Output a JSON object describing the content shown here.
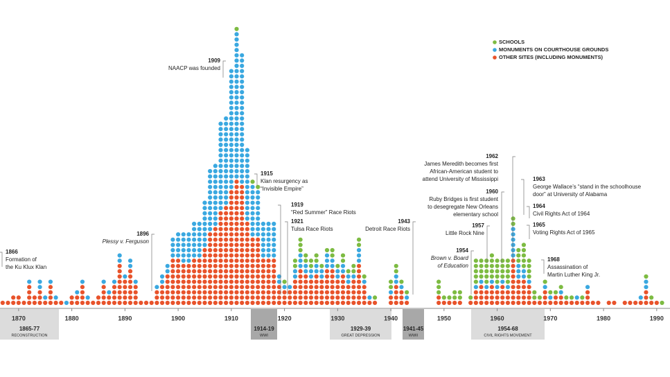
{
  "chart_data": {
    "type": "dot-stack",
    "xlim": [
      1866.5,
      1992.5
    ],
    "xticks": [
      1870,
      1880,
      1890,
      1900,
      1910,
      1920,
      1930,
      1940,
      1950,
      1960,
      1970,
      1980,
      1990
    ],
    "x": [
      1866,
      1867,
      1868,
      1869,
      1870,
      1871,
      1872,
      1873,
      1874,
      1875,
      1876,
      1877,
      1878,
      1879,
      1880,
      1881,
      1882,
      1883,
      1884,
      1885,
      1886,
      1887,
      1888,
      1889,
      1890,
      1891,
      1892,
      1893,
      1894,
      1895,
      1896,
      1897,
      1898,
      1899,
      1900,
      1901,
      1902,
      1903,
      1904,
      1905,
      1906,
      1907,
      1908,
      1909,
      1910,
      1911,
      1912,
      1913,
      1914,
      1915,
      1916,
      1917,
      1918,
      1919,
      1920,
      1921,
      1922,
      1923,
      1924,
      1925,
      1926,
      1927,
      1928,
      1929,
      1930,
      1931,
      1932,
      1933,
      1934,
      1935,
      1936,
      1937,
      1940,
      1941,
      1942,
      1943,
      1949,
      1950,
      1951,
      1952,
      1953,
      1955,
      1956,
      1957,
      1958,
      1959,
      1960,
      1961,
      1962,
      1963,
      1964,
      1965,
      1966,
      1967,
      1968,
      1969,
      1970,
      1971,
      1972,
      1973,
      1974,
      1975,
      1976,
      1977,
      1978,
      1979,
      1981,
      1982,
      1984,
      1985,
      1986,
      1987,
      1988,
      1989,
      1990,
      1991
    ],
    "series": [
      {
        "name": "SCHOOLS",
        "color": "#7dbb42",
        "values": [
          0,
          0,
          0,
          0,
          0,
          0,
          0,
          0,
          0,
          0,
          0,
          0,
          0,
          0,
          0,
          0,
          0,
          0,
          0,
          0,
          0,
          0,
          0,
          0,
          0,
          0,
          0,
          0,
          0,
          0,
          0,
          0,
          0,
          0,
          0,
          0,
          0,
          0,
          0,
          0,
          0,
          0,
          0,
          0,
          0,
          1,
          0,
          0,
          1,
          1,
          0,
          0,
          0,
          0,
          1,
          0,
          2,
          3,
          2,
          2,
          2,
          1,
          1,
          2,
          1,
          2,
          1,
          2,
          2,
          1,
          0,
          1,
          2,
          2,
          1,
          1,
          3,
          1,
          1,
          2,
          2,
          1,
          5,
          4,
          5,
          5,
          5,
          4,
          5,
          2,
          3,
          5,
          4,
          2,
          1,
          1,
          1,
          1,
          1,
          1,
          1,
          0,
          1,
          0,
          0,
          0,
          0,
          0,
          0,
          0,
          0,
          0,
          1,
          1,
          0,
          1
        ]
      },
      {
        "name": "MONUMENTS ON COURTHOUSE GROUNDS",
        "color": "#3aa8e0",
        "values": [
          1,
          0,
          0,
          0,
          0,
          0,
          1,
          0,
          2,
          1,
          1,
          1,
          0,
          1,
          0,
          1,
          1,
          1,
          0,
          0,
          1,
          1,
          1,
          2,
          1,
          2,
          1,
          0,
          0,
          0,
          1,
          2,
          2,
          4,
          5,
          6,
          6,
          7,
          7,
          9,
          12,
          12,
          17,
          17,
          23,
          28,
          25,
          14,
          10,
          9,
          7,
          7,
          7,
          2,
          1,
          1,
          2,
          3,
          2,
          2,
          2,
          2,
          3,
          2,
          2,
          2,
          2,
          1,
          3,
          1,
          1,
          0,
          1,
          2,
          1,
          1,
          0,
          0,
          0,
          0,
          0,
          0,
          1,
          1,
          1,
          1,
          1,
          1,
          1,
          6,
          3,
          2,
          1,
          0,
          0,
          1,
          1,
          0,
          1,
          0,
          0,
          1,
          0,
          1,
          0,
          0,
          0,
          0,
          0,
          0,
          0,
          1,
          2,
          0,
          0,
          0
        ]
      },
      {
        "name": "OTHER SITES (INCLUDING MONUMENTS)",
        "color": "#e8532b",
        "values": [
          3,
          1,
          1,
          2,
          2,
          1,
          4,
          2,
          3,
          1,
          4,
          1,
          1,
          0,
          2,
          2,
          4,
          1,
          1,
          2,
          4,
          2,
          4,
          8,
          5,
          7,
          4,
          1,
          1,
          1,
          3,
          4,
          6,
          9,
          9,
          8,
          8,
          9,
          9,
          11,
          14,
          15,
          18,
          19,
          22,
          24,
          23,
          16,
          13,
          13,
          9,
          9,
          9,
          4,
          3,
          3,
          5,
          7,
          6,
          5,
          6,
          5,
          7,
          7,
          5,
          6,
          4,
          5,
          8,
          4,
          1,
          1,
          2,
          4,
          3,
          1,
          2,
          1,
          1,
          1,
          1,
          1,
          3,
          4,
          3,
          4,
          3,
          4,
          3,
          9,
          5,
          5,
          4,
          1,
          1,
          3,
          1,
          2,
          2,
          1,
          1,
          1,
          1,
          3,
          1,
          1,
          1,
          1,
          1,
          1,
          1,
          1,
          3,
          1,
          1,
          0
        ]
      }
    ],
    "annotations": [
      {
        "year": "1866",
        "lines": [
          "Formation of",
          "the Ku Klux Klan"
        ]
      },
      {
        "year": "1896",
        "lines": [
          "Plessy v. Ferguson"
        ]
      },
      {
        "year": "1909",
        "lines": [
          "NAACP was founded"
        ]
      },
      {
        "year": "1915",
        "lines": [
          "Klan resurgency as",
          "“Invisible Empire”"
        ]
      },
      {
        "year": "1919",
        "lines": [
          "“Red Summer” Race Riots"
        ]
      },
      {
        "year": "1921",
        "lines": [
          "Tulsa Race Riots"
        ]
      },
      {
        "year": "1943",
        "lines": [
          "Detroit Race Riots"
        ]
      },
      {
        "year": "1954",
        "lines": [
          "Brown v. Board",
          "of Education"
        ]
      },
      {
        "year": "1957",
        "lines": [
          "Little Rock Nine"
        ]
      },
      {
        "year": "1960",
        "lines": [
          "Ruby Bridges is first student",
          "to desegregate New Orleans",
          "elementary school"
        ]
      },
      {
        "year": "1962",
        "lines": [
          "James Meredith becomes first",
          "African-American student to",
          "attend University of Mississippi"
        ]
      },
      {
        "year": "1963",
        "lines": [
          "George Wallace’s “stand in the schoolhouse",
          "door” at University of Alabama"
        ]
      },
      {
        "year": "1964",
        "lines": [
          "Civil Rights Act of 1964"
        ]
      },
      {
        "year": "1965",
        "lines": [
          "Voting Rights Act of 1965"
        ]
      },
      {
        "year": "1968",
        "lines": [
          "Assassination of",
          "Martin Luther King Jr."
        ]
      }
    ],
    "periods": [
      {
        "years": "1865-77",
        "label": "RECONSTRUCTION"
      },
      {
        "years": "1914-19",
        "label": "WWI"
      },
      {
        "years": "1929-39",
        "label": "GREAT DEPRESSION"
      },
      {
        "years": "1941-45",
        "label": "WWII"
      },
      {
        "years": "1954-68",
        "label": "CIVIL RIGHTS MOVEMENT"
      }
    ]
  }
}
